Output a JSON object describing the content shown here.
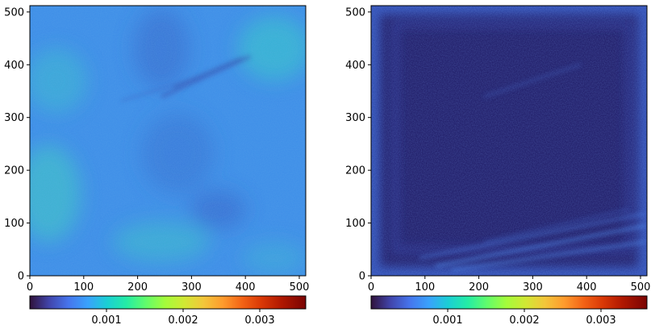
{
  "chart_data": [
    {
      "type": "heatmap",
      "xlim": [
        0,
        512
      ],
      "ylim": [
        0,
        512
      ],
      "x_ticks": [
        0,
        100,
        200,
        300,
        400,
        500
      ],
      "y_ticks": [
        0,
        100,
        200,
        300,
        400,
        500
      ],
      "x_tick_labels": [
        "0",
        "100",
        "200",
        "300",
        "400",
        "500"
      ],
      "y_tick_labels": [
        "0",
        "100",
        "200",
        "300",
        "400",
        "500"
      ],
      "colormap": "turbo",
      "colorbar": {
        "orientation": "horizontal",
        "location": "bottom",
        "range": [
          0,
          0.0036
        ],
        "ticks": [
          0.001,
          0.002,
          0.003
        ],
        "tick_labels": [
          "0.001",
          "0.002",
          "0.003"
        ]
      },
      "dominant_level": "approximately 0.0008–0.0012 (blue-cyan) across most of the field",
      "features": "greenish high regions along the left edge and upper right; darker diagonal streaks near y≈380–420 and x≈200–320; darker mottled patches near (250,250) and (320,120)"
    },
    {
      "type": "heatmap",
      "xlim": [
        0,
        512
      ],
      "ylim": [
        0,
        512
      ],
      "x_ticks": [
        0,
        100,
        200,
        300,
        400,
        500
      ],
      "y_ticks": [
        0,
        100,
        200,
        300,
        400,
        500
      ],
      "x_tick_labels": [
        "0",
        "100",
        "200",
        "300",
        "400",
        "500"
      ],
      "y_tick_labels": [
        "0",
        "100",
        "200",
        "300",
        "400",
        "500"
      ],
      "colormap": "turbo",
      "colorbar": {
        "orientation": "horizontal",
        "location": "bottom",
        "range": [
          0,
          0.0036
        ],
        "ticks": [
          0.001,
          0.002,
          0.003
        ],
        "tick_labels": [
          "0.001",
          "0.002",
          "0.003"
        ]
      },
      "dominant_level": "approximately 0.0001–0.0004 (dark indigo) across most of the field",
      "features": "brighter blue border frame around all edges; bright diagonal streaks in lower right near y≈20–100; speckled brighter points in the center"
    }
  ]
}
